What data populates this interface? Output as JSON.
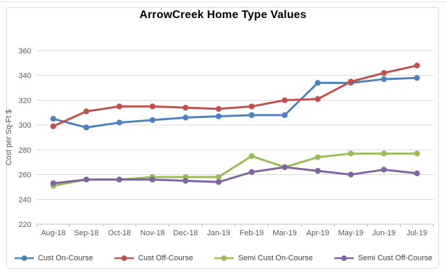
{
  "title": "ArrowCreek Home Type Values",
  "chart_data": {
    "type": "line",
    "title": "ArrowCreek Home Type Values",
    "xlabel": "",
    "ylabel": "Cost per Sq-Ft $",
    "ylim": [
      220,
      360
    ],
    "ytick_step": 20,
    "grid": true,
    "legend_position": "bottom",
    "categories": [
      "Aug-18",
      "Sep-18",
      "Oct-18",
      "Nov-18",
      "Dec-18",
      "Jan-19",
      "Feb-19",
      "Mar-19",
      "Apr-19",
      "May-19",
      "Jun-19",
      "Jul-19"
    ],
    "series": [
      {
        "name": "Cust On-Course",
        "color": "#4F81BD",
        "values": [
          305,
          298,
          302,
          304,
          306,
          307,
          308,
          308,
          334,
          334,
          337,
          338
        ]
      },
      {
        "name": "Cust Off-Course",
        "color": "#C0504D",
        "values": [
          299,
          311,
          315,
          315,
          314,
          313,
          315,
          320,
          321,
          335,
          342,
          348
        ]
      },
      {
        "name": "Semi Cust On-Course",
        "color": "#9BBB59",
        "values": [
          251,
          256,
          256,
          258,
          258,
          258,
          275,
          266,
          274,
          277,
          277,
          277
        ]
      },
      {
        "name": "Semi Cust Off-Course",
        "color": "#8064A2",
        "values": [
          253,
          256,
          256,
          256,
          255,
          254,
          262,
          266,
          263,
          260,
          264,
          261
        ]
      }
    ]
  },
  "colors": {
    "grid": "#D9D9D9",
    "axis": "#BFBFBF",
    "tick_label": "#595959",
    "legend_text": "#404040",
    "frame_border": "#D9D9D9",
    "title": "#000000"
  }
}
